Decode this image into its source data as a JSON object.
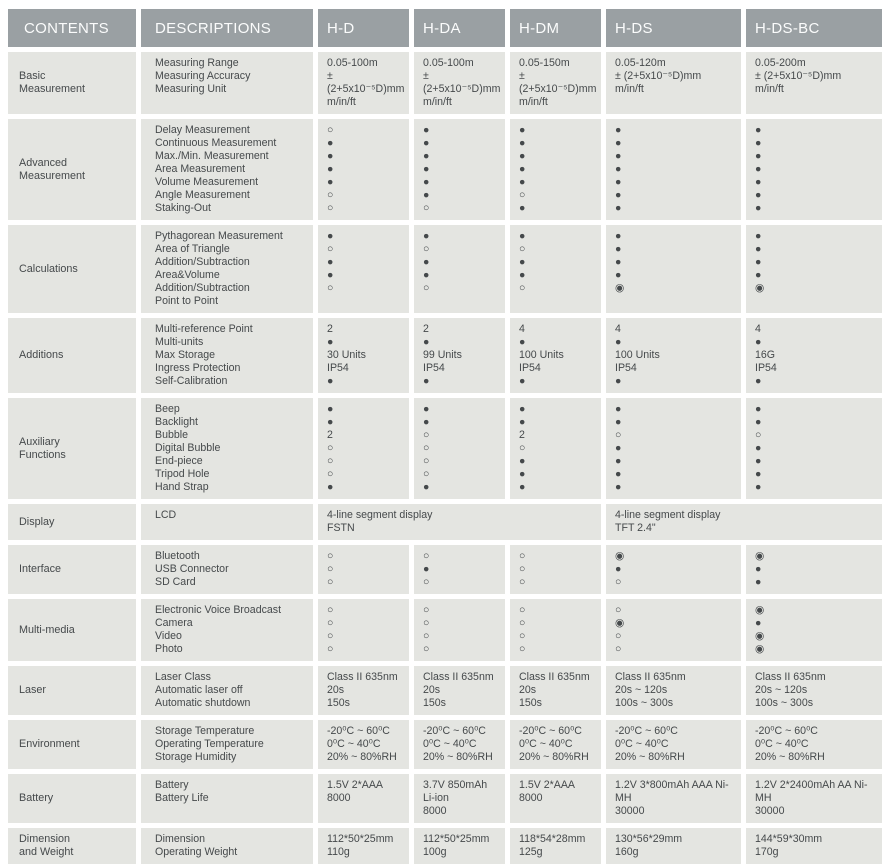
{
  "colors": {
    "header_bg": "#9aa0a3",
    "header_text": "#fbfcfc",
    "cell_bg": "#e4e5e1",
    "body_text": "#45494b"
  },
  "symbols": {
    "supported": "●",
    "not_supported": "○",
    "partial": "◉"
  },
  "table": {
    "columns": [
      "CONTENTS",
      "DESCRIPTIONS",
      "H-D",
      "H-DA",
      "H-DM",
      "H-DS",
      "H-DS-BC"
    ],
    "sections": [
      {
        "category": "Basic\nMeasurement",
        "descriptions": [
          "Measuring Range",
          "Measuring Accuracy",
          "Measuring Unit"
        ],
        "values": [
          [
            "0.05-100m",
            "± (2+5x10⁻⁵D)mm",
            "m/in/ft"
          ],
          [
            "0.05-100m",
            "± (2+5x10⁻⁵D)mm",
            "m/in/ft"
          ],
          [
            "0.05-150m",
            "± (2+5x10⁻⁵D)mm",
            "m/in/ft"
          ],
          [
            "0.05-120m",
            "± (2+5x10⁻⁵D)mm",
            "m/in/ft"
          ],
          [
            "0.05-200m",
            "± (2+5x10⁻⁵D)mm",
            "m/in/ft"
          ]
        ]
      },
      {
        "category": "Advanced\nMeasurement",
        "descriptions": [
          "Delay Measurement",
          "Continuous Measurement",
          "Max./Min. Measurement",
          "Area Measurement",
          "Volume Measurement",
          "Angle Measurement",
          "Staking-Out"
        ],
        "values": [
          [
            "○",
            "●",
            "●",
            "●",
            "●",
            "○",
            "○"
          ],
          [
            "●",
            "●",
            "●",
            "●",
            "●",
            "●",
            "○"
          ],
          [
            "●",
            "●",
            "●",
            "●",
            "●",
            "○",
            "●"
          ],
          [
            "●",
            "●",
            "●",
            "●",
            "●",
            "●",
            "●"
          ],
          [
            "●",
            "●",
            "●",
            "●",
            "●",
            "●",
            "●"
          ]
        ]
      },
      {
        "category": "Calculations",
        "descriptions": [
          "Pythagorean Measurement",
          "Area of Triangle",
          "Addition/Subtraction",
          "Area&Volume Addition/Subtraction",
          "Point to Point"
        ],
        "values": [
          [
            "●",
            "○",
            "●",
            "●",
            "○"
          ],
          [
            "●",
            "○",
            "●",
            "●",
            "○"
          ],
          [
            "●",
            "○",
            "●",
            "●",
            "○"
          ],
          [
            "●",
            "●",
            "●",
            "●",
            "◉"
          ],
          [
            "●",
            "●",
            "●",
            "●",
            "◉"
          ]
        ]
      },
      {
        "category": "Additions",
        "descriptions": [
          "Multi-reference Point",
          "Multi-units",
          "Max Storage",
          "Ingress Protection",
          "Self-Calibration"
        ],
        "values": [
          [
            "2",
            "●",
            "30 Units",
            "IP54",
            "●"
          ],
          [
            "2",
            "●",
            "99 Units",
            "IP54",
            "●"
          ],
          [
            "4",
            "●",
            "100 Units",
            "IP54",
            "●"
          ],
          [
            "4",
            "●",
            "100 Units",
            "IP54",
            "●"
          ],
          [
            "4",
            "●",
            "16G",
            "IP54",
            "●"
          ]
        ]
      },
      {
        "category": "Auxiliary\nFunctions",
        "descriptions": [
          "Beep",
          "Backlight",
          "Bubble",
          "Digital Bubble",
          "End-piece",
          "Tripod Hole",
          "Hand Strap"
        ],
        "values": [
          [
            "●",
            "●",
            "2",
            "○",
            "○",
            "○",
            "●"
          ],
          [
            "●",
            "●",
            "○",
            "○",
            "○",
            "○",
            "●"
          ],
          [
            "●",
            "●",
            "2",
            "○",
            "●",
            "●",
            "●"
          ],
          [
            "●",
            "●",
            "○",
            "●",
            "●",
            "●",
            "●"
          ],
          [
            "●",
            "●",
            "○",
            "●",
            "●",
            "●",
            "●"
          ]
        ]
      },
      {
        "category": "Display",
        "descriptions": [
          "LCD"
        ],
        "spans": [
          {
            "cols": 3,
            "text": "4-line segment display\nFSTN"
          },
          {
            "cols": 2,
            "text": "4-line segment display\nTFT 2.4\""
          }
        ]
      },
      {
        "category": "Interface",
        "descriptions": [
          "Bluetooth",
          "USB Connector",
          "SD Card"
        ],
        "values": [
          [
            "○",
            "○",
            "○"
          ],
          [
            "○",
            "●",
            "○"
          ],
          [
            "○",
            "○",
            "○"
          ],
          [
            "◉",
            "●",
            "○"
          ],
          [
            "◉",
            "●",
            "●"
          ]
        ]
      },
      {
        "category": "Multi-media",
        "descriptions": [
          "Electronic Voice Broadcast",
          "Camera",
          "Video",
          "Photo"
        ],
        "values": [
          [
            "○",
            "○",
            "○",
            "○"
          ],
          [
            "○",
            "○",
            "○",
            "○"
          ],
          [
            "○",
            "○",
            "○",
            "○"
          ],
          [
            "○",
            "◉",
            "○",
            "○"
          ],
          [
            "◉",
            "●",
            "◉",
            "◉"
          ]
        ]
      },
      {
        "category": "Laser",
        "descriptions": [
          "Laser Class",
          "Automatic laser off",
          "Automatic shutdown"
        ],
        "values": [
          [
            "Class II 635nm",
            "20s",
            "150s"
          ],
          [
            "Class II 635nm",
            "20s",
            "150s"
          ],
          [
            "Class II 635nm",
            "20s",
            "150s"
          ],
          [
            "Class II 635nm",
            "20s ~ 120s",
            "100s ~ 300s"
          ],
          [
            "Class II 635nm",
            "20s ~ 120s",
            "100s ~ 300s"
          ]
        ]
      },
      {
        "category": "Environment",
        "descriptions": [
          "Storage Temperature",
          "Operating Temperature",
          "Storage Humidity"
        ],
        "values": [
          [
            "-20⁰C ~ 60⁰C",
            "0⁰C ~ 40⁰C",
            "20% ~ 80%RH"
          ],
          [
            "-20⁰C ~ 60⁰C",
            "0⁰C ~ 40⁰C",
            "20% ~ 80%RH"
          ],
          [
            "-20⁰C ~ 60⁰C",
            "0⁰C ~ 40⁰C",
            "20% ~ 80%RH"
          ],
          [
            "-20⁰C ~ 60⁰C",
            "0⁰C ~ 40⁰C",
            "20% ~ 80%RH"
          ],
          [
            "-20⁰C ~ 60⁰C",
            "0⁰C ~ 40⁰C",
            "20% ~ 80%RH"
          ]
        ]
      },
      {
        "category": "Battery",
        "descriptions": [
          "Battery",
          "Battery Life"
        ],
        "values": [
          [
            "1.5V 2*AAA",
            "8000"
          ],
          [
            "3.7V 850mAh Li-ion",
            "8000"
          ],
          [
            "1.5V 2*AAA",
            "8000"
          ],
          [
            "1.2V 3*800mAh AAA Ni-MH",
            "30000"
          ],
          [
            "1.2V 2*2400mAh  AA Ni-MH",
            "30000"
          ]
        ]
      },
      {
        "category": "Dimension\nand Weight",
        "descriptions": [
          "Dimension",
          "Operating Weight"
        ],
        "values": [
          [
            "112*50*25mm",
            "110g"
          ],
          [
            "112*50*25mm",
            "100g"
          ],
          [
            "118*54*28mm",
            "125g"
          ],
          [
            "130*56*29mm",
            "160g"
          ],
          [
            "144*59*30mm",
            "170g"
          ]
        ]
      }
    ]
  }
}
